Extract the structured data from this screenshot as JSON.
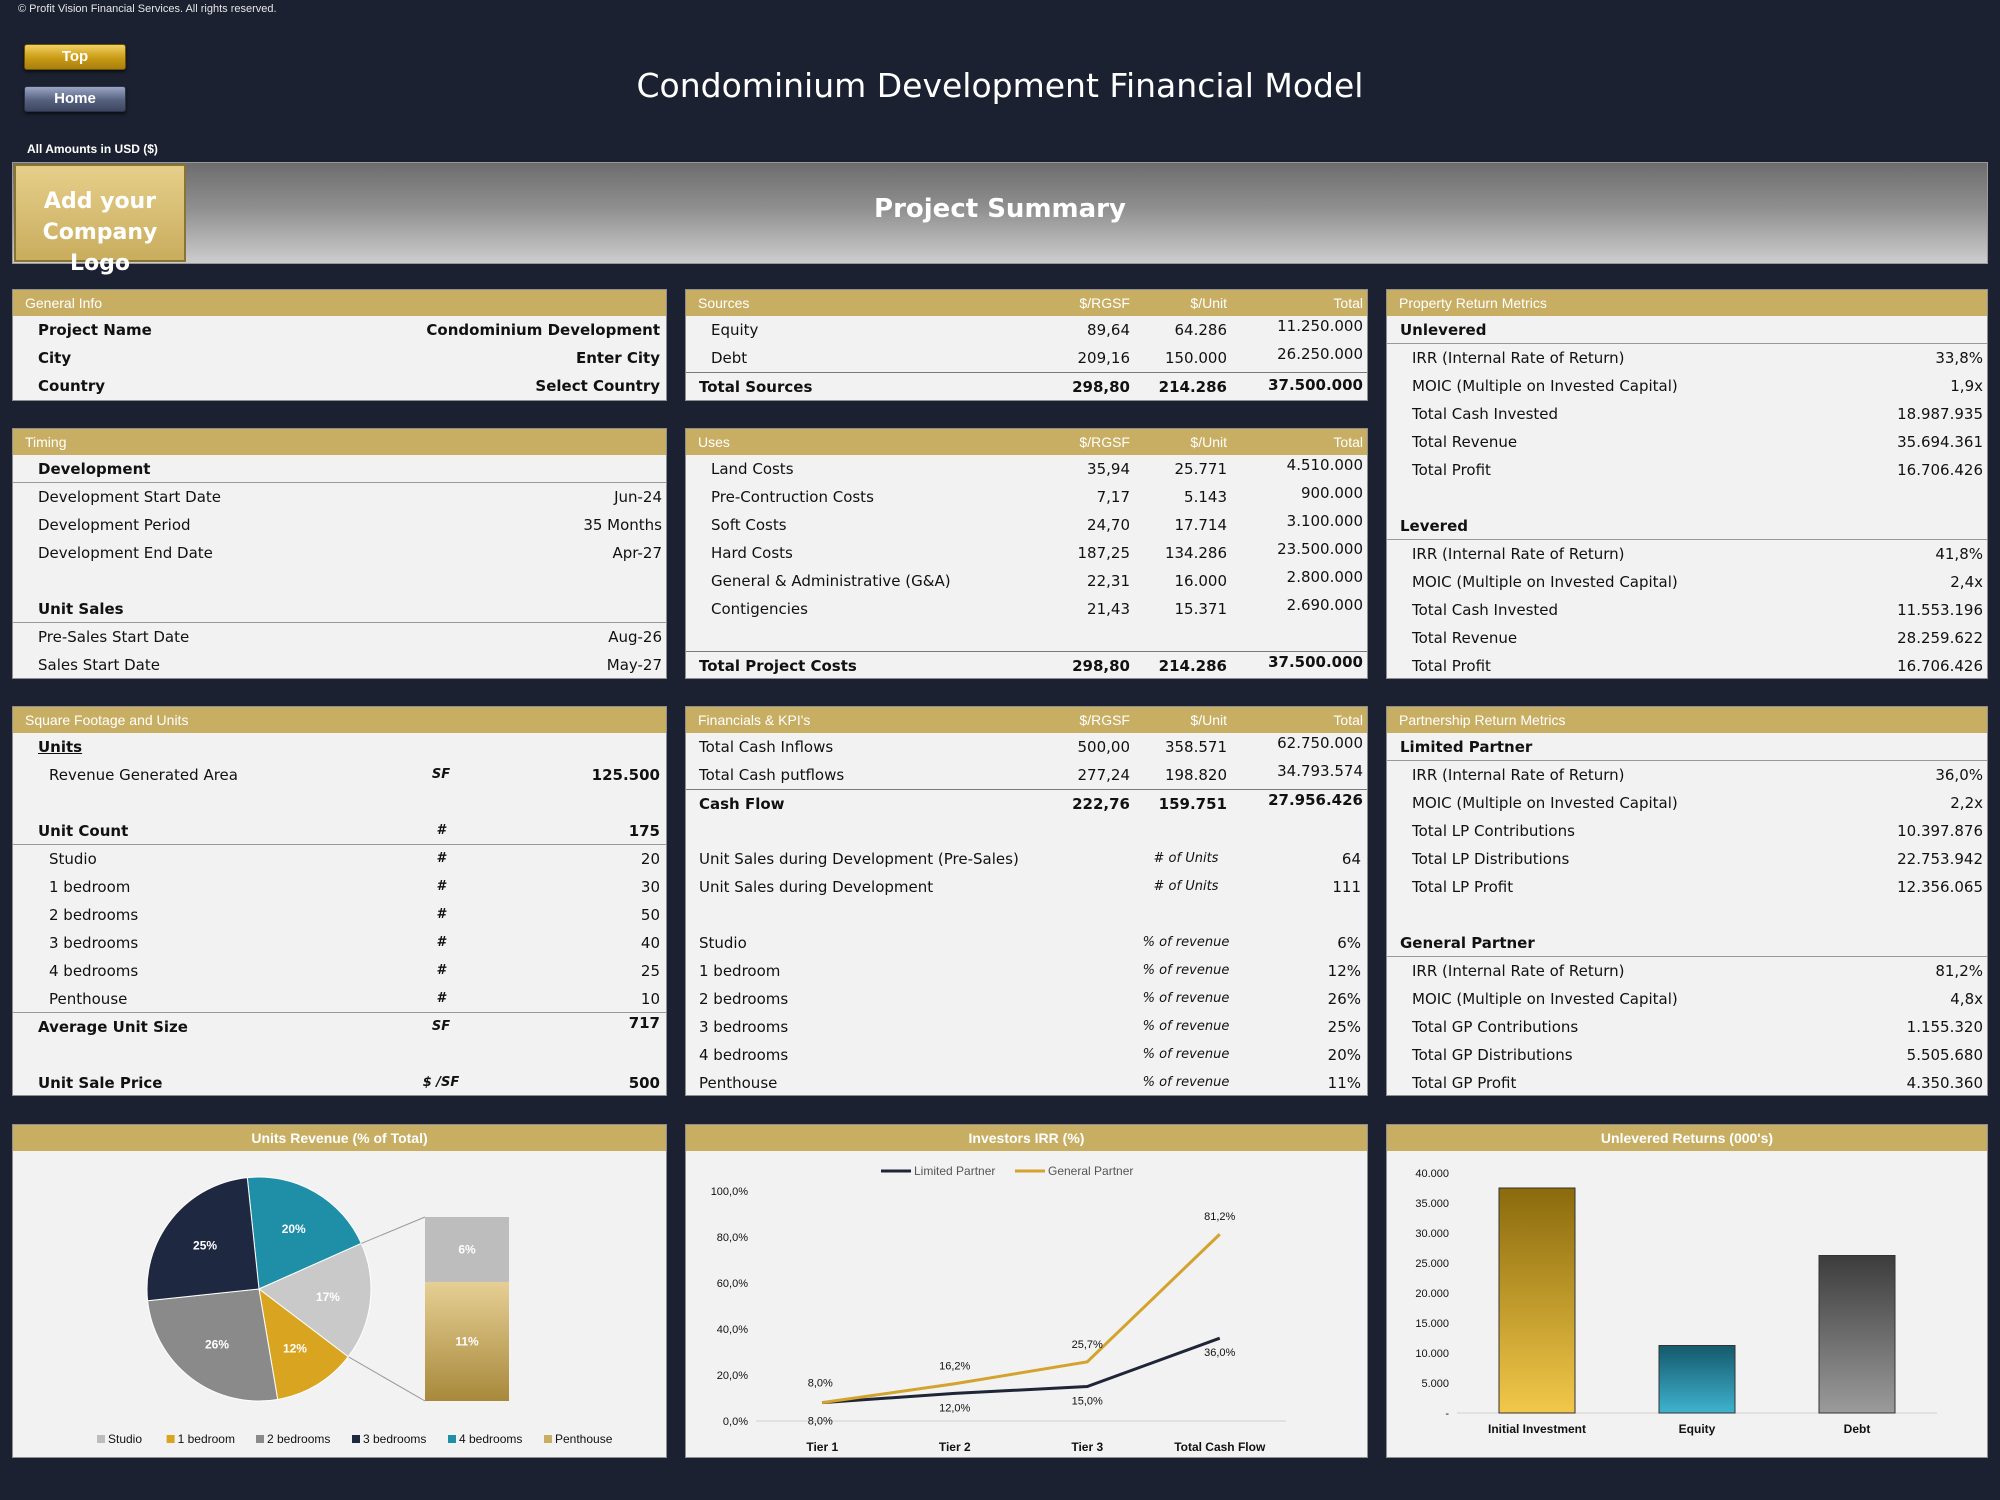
{
  "copyright": "© Profit Vision Financial Services. All rights reserved.",
  "nav": {
    "top": "Top",
    "home": "Home"
  },
  "title": "Condominium Development Financial Model",
  "amounts": "All Amounts in  USD ($)",
  "logo": {
    "line1": "Add your",
    "line2": "Company Logo"
  },
  "summary_title": "Project Summary",
  "general": {
    "title": "General Info",
    "rows": [
      {
        "label": "Project Name",
        "value": "Condominium Development"
      },
      {
        "label": "City",
        "value": "Enter City"
      },
      {
        "label": "Country",
        "value": "Select Country"
      }
    ]
  },
  "sources": {
    "title": "Sources",
    "cols": [
      "$/RGSF",
      "$/Unit",
      "Total"
    ],
    "rows": [
      {
        "label": "Equity",
        "v": [
          "89,64",
          "64.286",
          "11.250.000"
        ]
      },
      {
        "label": "Debt",
        "v": [
          "209,16",
          "150.000",
          "26.250.000"
        ]
      }
    ],
    "total": {
      "label": "Total Sources",
      "v": [
        "298,80",
        "214.286",
        "37.500.000"
      ]
    }
  },
  "property": {
    "title": "Property Return Metrics",
    "unlevered": {
      "title": "Unlevered",
      "rows": [
        {
          "label": "IRR (Internal Rate of Return)",
          "value": "33,8%"
        },
        {
          "label": "MOIC (Multiple on Invested Capital)",
          "value": "1,9x"
        },
        {
          "label": "Total Cash Invested",
          "value": "18.987.935"
        },
        {
          "label": "Total Revenue",
          "value": "35.694.361"
        },
        {
          "label": "Total Profit",
          "value": "16.706.426"
        }
      ]
    },
    "levered": {
      "title": "Levered",
      "rows": [
        {
          "label": "IRR (Internal Rate of Return)",
          "value": "41,8%"
        },
        {
          "label": "MOIC (Multiple on Invested Capital)",
          "value": "2,4x"
        },
        {
          "label": "Total Cash Invested",
          "value": "11.553.196"
        },
        {
          "label": "Total Revenue",
          "value": "28.259.622"
        },
        {
          "label": "Total Profit",
          "value": "16.706.426"
        }
      ]
    }
  },
  "timing": {
    "title": "Timing",
    "dev_title": "Development",
    "dev_rows": [
      {
        "label": "Development Start Date",
        "value": "Jun-24"
      },
      {
        "label": "Development Period",
        "value": "35 Months"
      },
      {
        "label": "Development End Date",
        "value": "Apr-27"
      }
    ],
    "sales_title": "Unit Sales",
    "sales_rows": [
      {
        "label": "Pre-Sales Start Date",
        "value": "Aug-26"
      },
      {
        "label": "Sales Start Date",
        "value": "May-27"
      }
    ]
  },
  "uses": {
    "title": "Uses",
    "cols": [
      "$/RGSF",
      "$/Unit",
      "Total"
    ],
    "rows": [
      {
        "label": "Land Costs",
        "v": [
          "35,94",
          "25.771",
          "4.510.000"
        ]
      },
      {
        "label": "Pre-Contruction Costs",
        "v": [
          "7,17",
          "5.143",
          "900.000"
        ]
      },
      {
        "label": "Soft Costs",
        "v": [
          "24,70",
          "17.714",
          "3.100.000"
        ]
      },
      {
        "label": "Hard Costs",
        "v": [
          "187,25",
          "134.286",
          "23.500.000"
        ]
      },
      {
        "label": "General & Administrative (G&A)",
        "v": [
          "22,31",
          "16.000",
          "2.800.000"
        ]
      },
      {
        "label": "Contigencies",
        "v": [
          "21,43",
          "15.371",
          "2.690.000"
        ]
      }
    ],
    "total": {
      "label": "Total Project Costs",
      "v": [
        "298,80",
        "214.286",
        "37.500.000"
      ]
    }
  },
  "sqft": {
    "title": "Square Footage and Units",
    "units_title": "Units",
    "rga": {
      "label": "Revenue Generated Area",
      "unit": "SF",
      "value": "125.500"
    },
    "count": {
      "label": "Unit Count",
      "unit": "#",
      "value": "175"
    },
    "types": [
      {
        "label": "Studio",
        "unit": "#",
        "value": "20"
      },
      {
        "label": "1 bedroom",
        "unit": "#",
        "value": "30"
      },
      {
        "label": "2 bedrooms",
        "unit": "#",
        "value": "50"
      },
      {
        "label": "3 bedrooms",
        "unit": "#",
        "value": "40"
      },
      {
        "label": "4 bedrooms",
        "unit": "#",
        "value": "25"
      },
      {
        "label": "Penthouse",
        "unit": "#",
        "value": "10"
      }
    ],
    "avg": {
      "label": "Average Unit Size",
      "unit": "SF",
      "value": "717"
    },
    "price": {
      "label": "Unit Sale Price",
      "unit": "$ /SF",
      "value": "500"
    }
  },
  "fin": {
    "title": "Financials & KPI's",
    "cols": [
      "$/RGSF",
      "$/Unit",
      "Total"
    ],
    "rows": [
      {
        "label": "Total Cash Inflows",
        "v": [
          "500,00",
          "358.571",
          "62.750.000"
        ]
      },
      {
        "label": "Total Cash putflows",
        "v": [
          "277,24",
          "198.820",
          "34.793.574"
        ]
      }
    ],
    "total": {
      "label": "Cash Flow",
      "v": [
        "222,76",
        "159.751",
        "27.956.426"
      ]
    },
    "sales": [
      {
        "label": "Unit Sales during Development (Pre-Sales)",
        "unit": "# of Units",
        "value": "64"
      },
      {
        "label": "Unit Sales during Development",
        "unit": "# of Units",
        "value": "111"
      }
    ],
    "rev": [
      {
        "label": "Studio",
        "unit": "% of revenue",
        "value": "6%"
      },
      {
        "label": "1 bedroom",
        "unit": "% of revenue",
        "value": "12%"
      },
      {
        "label": "2 bedrooms",
        "unit": "% of revenue",
        "value": "26%"
      },
      {
        "label": "3 bedrooms",
        "unit": "% of revenue",
        "value": "25%"
      },
      {
        "label": "4 bedrooms",
        "unit": "% of revenue",
        "value": "20%"
      },
      {
        "label": "Penthouse",
        "unit": "% of revenue",
        "value": "11%"
      }
    ]
  },
  "partnership": {
    "title": "Partnership Return Metrics",
    "lp": {
      "title": "Limited Partner",
      "rows": [
        {
          "label": "IRR (Internal Rate of Return)",
          "value": "36,0%"
        },
        {
          "label": "MOIC (Multiple on Invested Capital)",
          "value": "2,2x"
        },
        {
          "label": "Total LP Contributions",
          "value": "10.397.876"
        },
        {
          "label": "Total LP Distributions",
          "value": "22.753.942"
        },
        {
          "label": "Total LP Profit",
          "value": "12.356.065"
        }
      ]
    },
    "gp": {
      "title": "General Partner",
      "rows": [
        {
          "label": "IRR (Internal Rate of Return)",
          "value": "81,2%"
        },
        {
          "label": "MOIC (Multiple on Invested Capital)",
          "value": "4,8x"
        },
        {
          "label": "Total GP Contributions",
          "value": "1.155.320"
        },
        {
          "label": "Total GP Distributions",
          "value": "5.505.680"
        },
        {
          "label": "Total GP Profit",
          "value": "4.350.360"
        }
      ]
    }
  },
  "chart_data": [
    {
      "type": "pie",
      "title": "Units Revenue (% of Total)",
      "categories": [
        "Studio",
        "1 bedroom",
        "2 bedrooms",
        "3 bedrooms",
        "4 bedrooms",
        "Penthouse"
      ],
      "values": [
        6,
        12,
        26,
        25,
        20,
        11
      ],
      "labels": [
        "6%",
        "12%",
        "26%",
        "25%",
        "20%",
        "11%"
      ],
      "colors": [
        "#bdbdbd",
        "#d9a520",
        "#8a8a8a",
        "#1e2840",
        "#1f8fa8",
        "#c8ae63"
      ],
      "legend": "bottom"
    },
    {
      "type": "line",
      "title": "Investors IRR (%)",
      "categories": [
        "Tier 1",
        "Tier 2",
        "Tier 3",
        "Total Cash Flow"
      ],
      "series": [
        {
          "name": "Limited Partner",
          "values": [
            8.0,
            12.0,
            15.0,
            36.0
          ],
          "labels": [
            "8,0%",
            "12,0%",
            "15,0%",
            "36,0%"
          ],
          "color": "#1e2536"
        },
        {
          "name": "General Partner",
          "values": [
            8.0,
            16.2,
            25.7,
            81.2
          ],
          "labels": [
            "8,0%",
            "16,2%",
            "25,7%",
            "81,2%"
          ],
          "color": "#d4a32e"
        }
      ],
      "ylim": [
        0,
        100
      ],
      "yticks": [
        "0,0%",
        "20,0%",
        "40,0%",
        "60,0%",
        "80,0%",
        "100,0%"
      ],
      "legend": "top"
    },
    {
      "type": "bar",
      "title": "Unlevered Returns (000's)",
      "categories": [
        "Initial Investment",
        "Equity",
        "Debt"
      ],
      "values": [
        37500,
        11250,
        26250
      ],
      "ylim": [
        0,
        40000
      ],
      "yticks": [
        "-",
        "5.000",
        "10.000",
        "15.000",
        "20.000",
        "25.000",
        "30.000",
        "35.000",
        "40.000"
      ]
    }
  ]
}
